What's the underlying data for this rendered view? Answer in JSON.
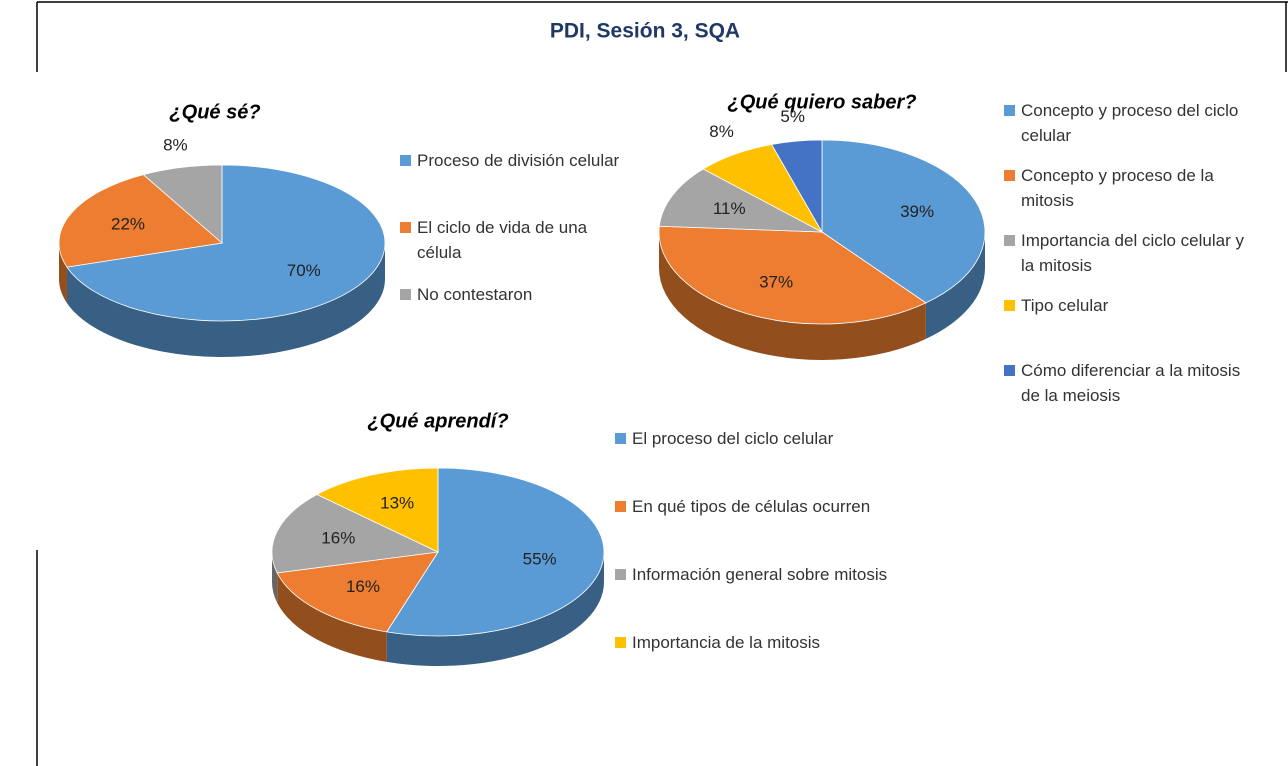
{
  "title": "PDI, Sesión 3, SQA",
  "chart_data": [
    {
      "type": "pie",
      "title": "¿Qué sé?",
      "categories": [
        "Proceso de división celular",
        "El ciclo de vida de una célula",
        "No contestaron"
      ],
      "values": [
        70,
        22,
        8
      ],
      "value_labels": [
        "70%",
        "22%",
        "8%"
      ],
      "colors": [
        "#5b9bd5",
        "#ed7d31",
        "#a5a5a5"
      ]
    },
    {
      "type": "pie",
      "title": "¿Qué quiero saber?",
      "categories": [
        "Concepto y proceso del ciclo celular",
        "Concepto y proceso de la mitosis",
        "Importancia del ciclo celular y la mitosis",
        "Tipo celular",
        "Cómo diferenciar a la mitosis de la meiosis"
      ],
      "values": [
        39,
        37,
        11,
        8,
        5
      ],
      "value_labels": [
        "39%",
        "37%",
        "11%",
        "8%",
        "5%"
      ],
      "colors": [
        "#5b9bd5",
        "#ed7d31",
        "#a5a5a5",
        "#ffc000",
        "#4472c4"
      ]
    },
    {
      "type": "pie",
      "title": "¿Qué aprendí?",
      "categories": [
        "El proceso del ciclo celular",
        "En qué tipos de células ocurren",
        "Información general sobre mitosis",
        "Importancia de la mitosis"
      ],
      "values": [
        55,
        16,
        16,
        13
      ],
      "value_labels": [
        "55%",
        "16%",
        "16%",
        "13%"
      ],
      "colors": [
        "#5b9bd5",
        "#ed7d31",
        "#a5a5a5",
        "#ffc000"
      ]
    }
  ]
}
